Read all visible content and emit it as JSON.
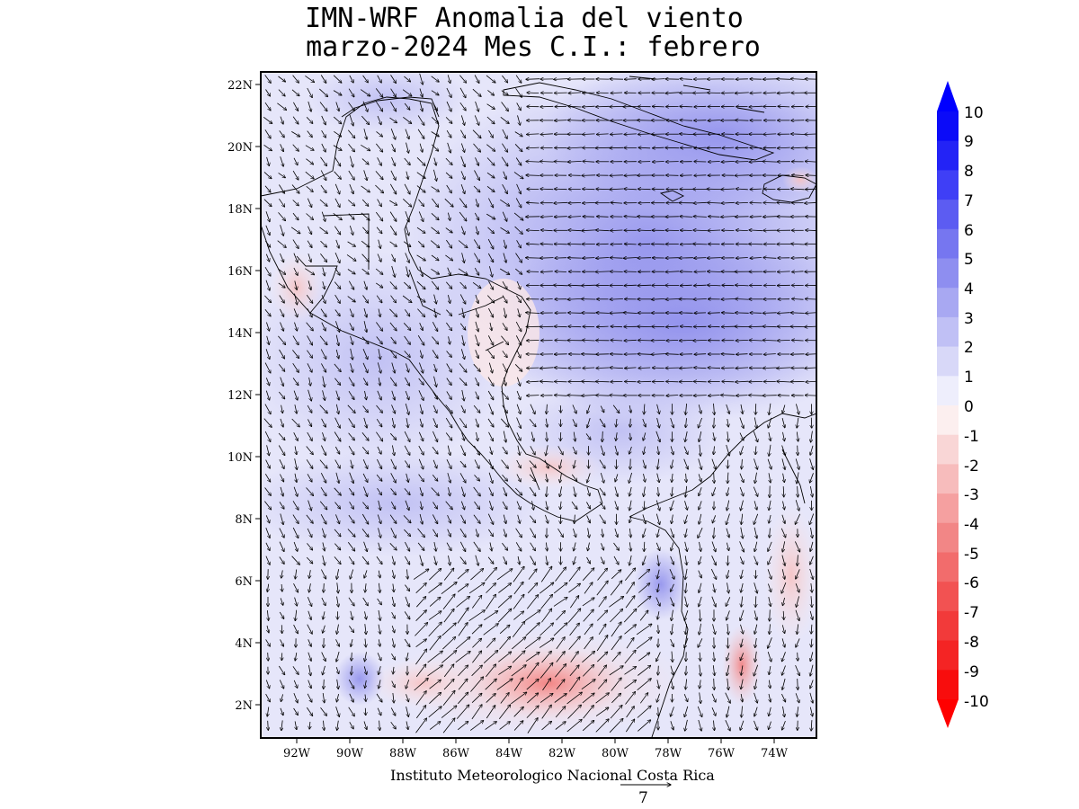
{
  "title_line1": "IMN-WRF Anomalia del viento",
  "title_line2": "marzo-2024 Mes C.I.: febrero",
  "credit": "Instituto Meteorologico Nacional Costa Rica",
  "reference_vector_label": "7",
  "map": {
    "lat_labels": [
      "22N",
      "20N",
      "18N",
      "16N",
      "14N",
      "12N",
      "10N",
      "8N",
      "6N",
      "4N",
      "2N"
    ],
    "lon_labels": [
      "92W",
      "90W",
      "88W",
      "86W",
      "84W",
      "82W",
      "80W",
      "78W",
      "76W",
      "74W"
    ]
  },
  "colorbar": {
    "labels": [
      "10",
      "9",
      "8",
      "7",
      "6",
      "5",
      "4",
      "3",
      "2",
      "1",
      "0",
      "-1",
      "-2",
      "-3",
      "-4",
      "-5",
      "-6",
      "-7",
      "-8",
      "-9",
      "-10"
    ],
    "colors": {
      "max_blue": "#0000ff",
      "strong_blue": "#3f3ff6",
      "mid_blue": "#8e8ef0",
      "light_blue": "#c9c9f5",
      "pale_blue": "#eaeafb",
      "pale_red": "#fbe7e7",
      "light_red": "#f7c2c2",
      "mid_red": "#f27e7e",
      "strong_red": "#f23a3a",
      "max_red": "#ff0000"
    }
  }
}
